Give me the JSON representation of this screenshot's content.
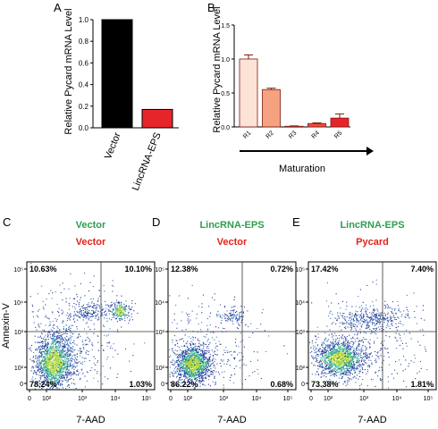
{
  "colors": {
    "green": "#2e9e4f",
    "red": "#e2231a",
    "bar_black": "#000000",
    "bar_red": "#e8242b",
    "r1": "#fde3d6",
    "r2": "#f4a27f",
    "r3": "#f06b50",
    "r4": "#ee4e3c",
    "r5": "#e8242b"
  },
  "chart_data": [
    {
      "panel": "A",
      "type": "bar",
      "ylabel": "Relative Pycard mRNA Level",
      "ylim": [
        0,
        1.0
      ],
      "yticks": [
        "0.0",
        "0.2",
        "0.4",
        "0.6",
        "0.8",
        "1.0"
      ],
      "categories": [
        "Vector",
        "LincRNA-EPS"
      ],
      "values": [
        1.0,
        0.17
      ]
    },
    {
      "panel": "B",
      "type": "bar",
      "ylabel": "Relative Pycard mRNA Level",
      "xlabel": "Maturation",
      "ylim": [
        0,
        1.5
      ],
      "yticks": [
        "0.0",
        "0.5",
        "1.0",
        "1.5"
      ],
      "categories": [
        "R1",
        "R2",
        "R3",
        "R4",
        "R5"
      ],
      "values": [
        1.0,
        0.55,
        0.01,
        0.05,
        0.13
      ],
      "errors": [
        0.06,
        0.02,
        0.005,
        0.01,
        0.06
      ]
    },
    {
      "panel": "C",
      "type": "scatter",
      "title_top": "Vector",
      "title_bottom": "Vector",
      "xlabel": "7-AAD",
      "ylabel": "Annexin-V",
      "quadrants": {
        "ul": "10.63%",
        "ur": "10.10%",
        "ll": "78.24%",
        "lr": "1.03%"
      }
    },
    {
      "panel": "D",
      "type": "scatter",
      "title_top": "LincRNA-EPS",
      "title_bottom": "Vector",
      "xlabel": "7-AAD",
      "quadrants": {
        "ul": "12.38%",
        "ur": "0.72%",
        "ll": "86.22%",
        "lr": "0.68%"
      }
    },
    {
      "panel": "E",
      "type": "scatter",
      "title_top": "LincRNA-EPS",
      "title_bottom": "Pycard",
      "xlabel": "7-AAD",
      "quadrants": {
        "ul": "17.42%",
        "ur": "7.40%",
        "ll": "73.38%",
        "lr": "1.81%"
      }
    }
  ]
}
